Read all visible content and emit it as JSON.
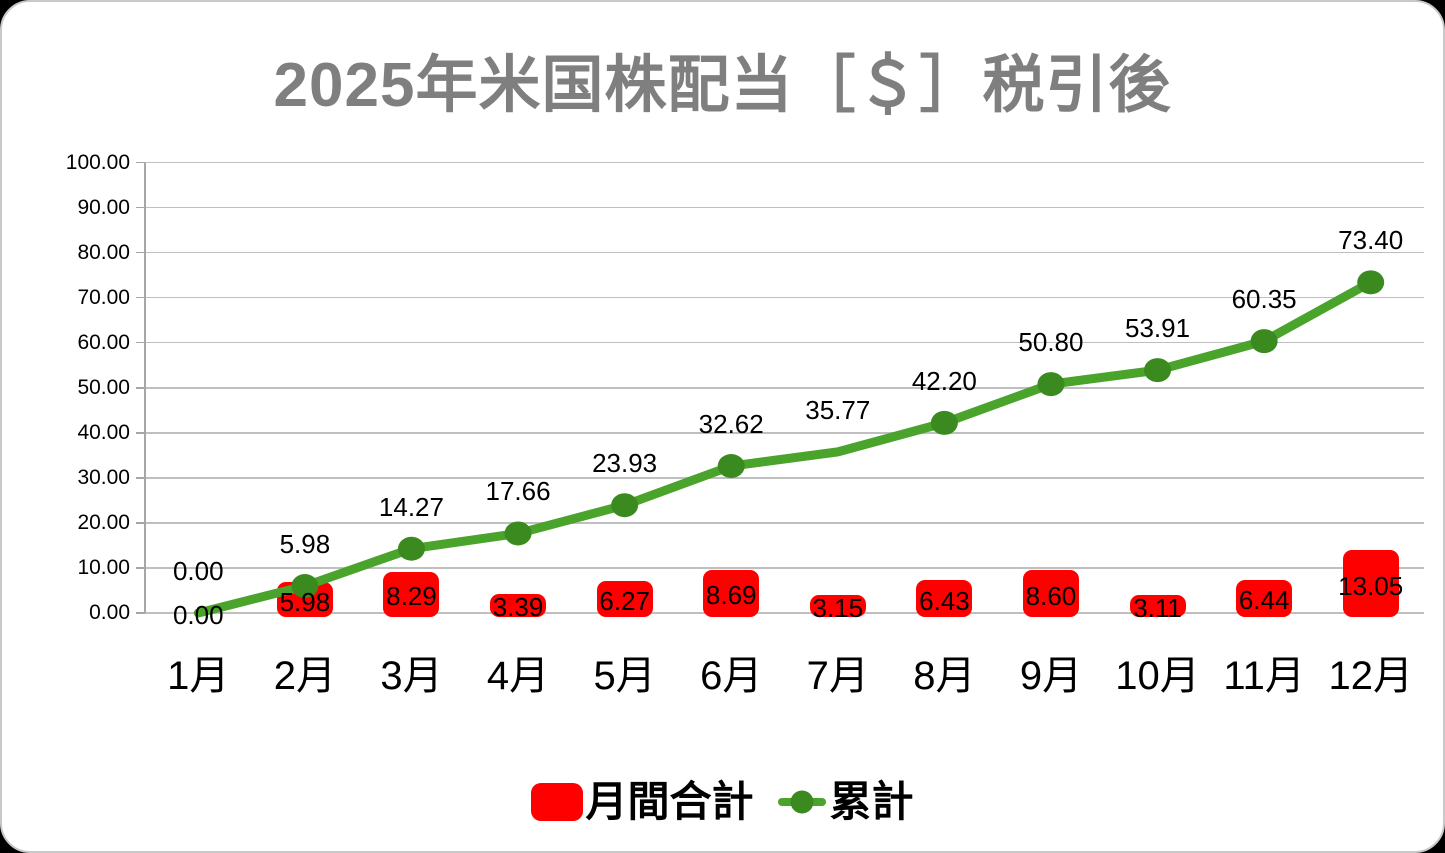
{
  "title": "2025年米国株配当［＄］税引後",
  "legend": {
    "monthly_label": "月間合計",
    "cumulative_label": "累計"
  },
  "chart_data": {
    "type": "combo-bar-line",
    "title": "2025年米国株配当［＄］税引後",
    "categories": [
      "1月",
      "2月",
      "3月",
      "4月",
      "5月",
      "6月",
      "7月",
      "8月",
      "9月",
      "10月",
      "11月",
      "12月"
    ],
    "series": [
      {
        "name": "月間合計",
        "type": "bar",
        "color": "#FF0000",
        "values": [
          0.0,
          5.98,
          8.29,
          3.39,
          6.27,
          8.69,
          3.15,
          6.43,
          8.6,
          3.11,
          6.44,
          13.05
        ]
      },
      {
        "name": "累計",
        "type": "line",
        "color": "#4AA32B",
        "marker_color": "#3A8A20",
        "values": [
          0.0,
          5.98,
          14.27,
          17.66,
          23.93,
          32.62,
          35.77,
          42.2,
          50.8,
          53.91,
          60.35,
          73.4
        ],
        "markers_hidden_at": [
          0,
          6
        ]
      }
    ],
    "ylim": [
      0,
      100
    ],
    "ytick_step": 10,
    "ytick_labels": [
      "0.00",
      "10.00",
      "20.00",
      "30.00",
      "40.00",
      "50.00",
      "60.00",
      "70.00",
      "80.00",
      "90.00",
      "100.00"
    ],
    "value_label_format": "0.00",
    "grid": true,
    "legend_position": "bottom",
    "title_color": "#7F7F7F",
    "label_color": "#000000"
  }
}
